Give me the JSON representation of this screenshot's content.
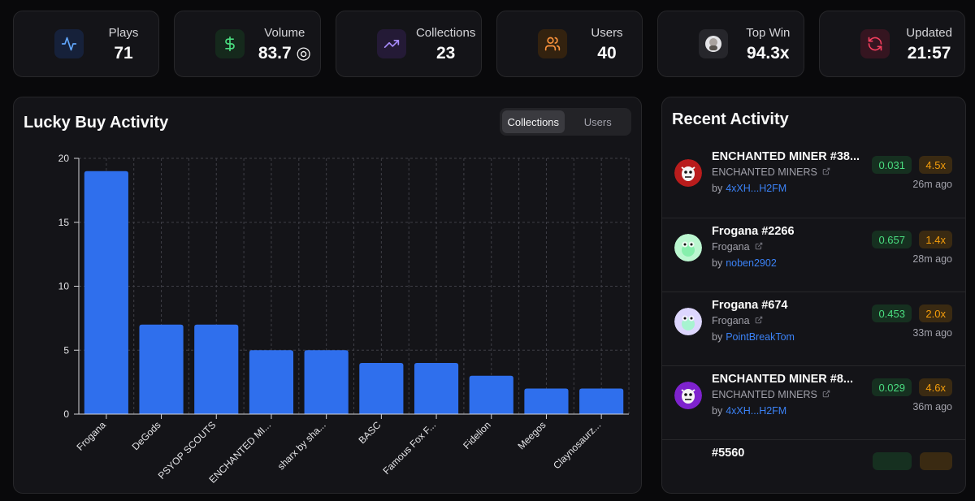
{
  "stats": [
    {
      "label": "Plays",
      "value": "71",
      "icon": "activity-icon",
      "color": "#60a5fa",
      "bg": "#16213a"
    },
    {
      "label": "Volume",
      "value": "83.7 ◎",
      "icon": "dollar-icon",
      "color": "#4ade80",
      "bg": "#15291c"
    },
    {
      "label": "Collections",
      "value": "23",
      "icon": "trending-up-icon",
      "color": "#a78bfa",
      "bg": "#241a36"
    },
    {
      "label": "Users",
      "value": "40",
      "icon": "users-icon",
      "color": "#fb923c",
      "bg": "#33220f"
    },
    {
      "label": "Top Win",
      "value": "94.3x",
      "icon": "top-win-avatar-icon",
      "color": "#d4d4d8",
      "bg": "#26262b"
    },
    {
      "label": "Updated",
      "value": "21:57",
      "icon": "refresh-icon",
      "color": "#f43f5e",
      "bg": "#351520"
    }
  ],
  "chart_panel": {
    "title": "Lucky Buy Activity",
    "tabs": [
      "Collections",
      "Users"
    ],
    "active_tab": "Collections"
  },
  "chart_data": {
    "type": "bar",
    "title": "",
    "xlabel": "",
    "ylabel": "",
    "categories": [
      "Frogana",
      "DeGods",
      "PSYOP SCOUTS",
      "ENCHANTED MI...",
      "sharx by sha...",
      "BASC",
      "Famous Fox F...",
      "Fidelion",
      "Meegos",
      "Claynosaurz..."
    ],
    "values": [
      19,
      7,
      7,
      5,
      5,
      4,
      4,
      3,
      2,
      2
    ],
    "ylim": [
      0,
      20
    ],
    "yticks": [
      0,
      5,
      10,
      15,
      20
    ],
    "grid": true,
    "bar_color": "#2f6fed"
  },
  "activity": {
    "title": "Recent Activity",
    "items": [
      {
        "name": "ENCHANTED MINER #38...",
        "collection": "ENCHANTED MINERS",
        "by_label": "by",
        "user": "4xXH...H2FM",
        "amount": "0.031",
        "multiplier": "4.5x",
        "time": "26m ago",
        "avatar": "miner-avatar-icon",
        "avatar_color": "#b91c1c"
      },
      {
        "name": "Frogana #2266",
        "collection": "Frogana",
        "by_label": "by",
        "user": "noben2902",
        "amount": "0.657",
        "multiplier": "1.4x",
        "time": "28m ago",
        "avatar": "frogana-avatar-icon",
        "avatar_color": "#bbf7d0"
      },
      {
        "name": "Frogana #674",
        "collection": "Frogana",
        "by_label": "by",
        "user": "PointBreakTom",
        "amount": "0.453",
        "multiplier": "2.0x",
        "time": "33m ago",
        "avatar": "frogana-avatar-icon",
        "avatar_color": "#ddd6fe"
      },
      {
        "name": "ENCHANTED MINER #8...",
        "collection": "ENCHANTED MINERS",
        "by_label": "by",
        "user": "4xXH...H2FM",
        "amount": "0.029",
        "multiplier": "4.6x",
        "time": "36m ago",
        "avatar": "miner-avatar-icon",
        "avatar_color": "#7e22ce"
      },
      {
        "name": "#5560",
        "collection": "",
        "by_label": "",
        "user": "",
        "amount": "",
        "multiplier": "",
        "time": "",
        "avatar": "",
        "avatar_color": "#141418"
      }
    ]
  }
}
